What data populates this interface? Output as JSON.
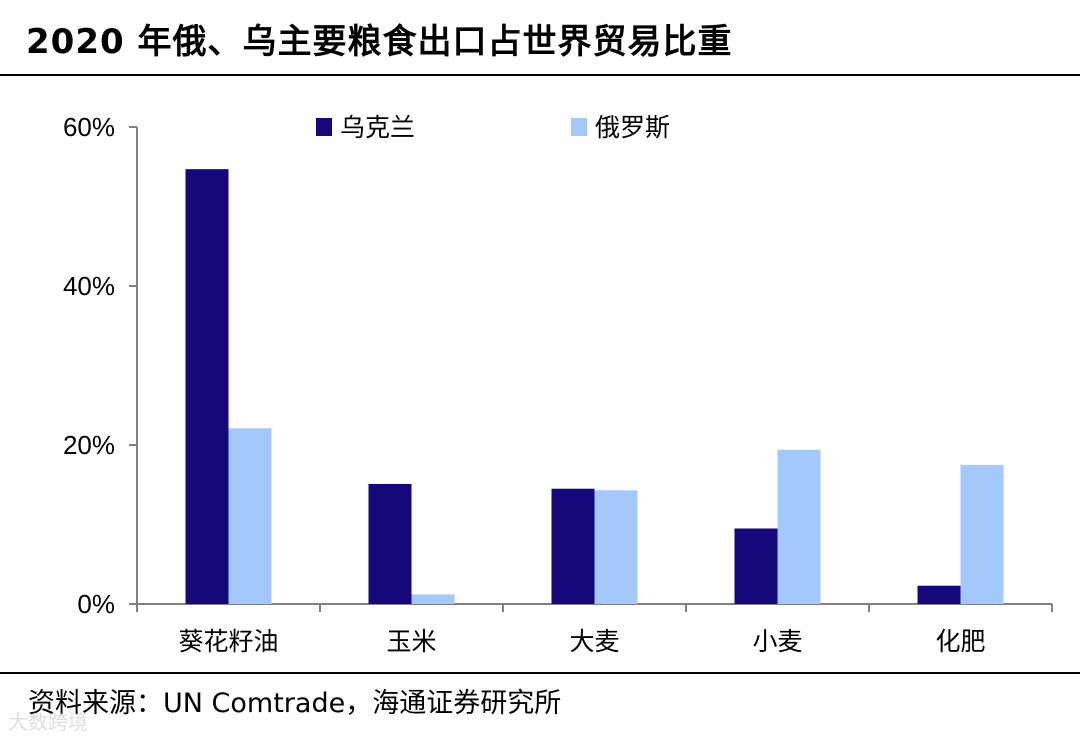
{
  "title": "2020 年俄、乌主要粮食出口占世界贸易比重",
  "source": "资料来源：UN Comtrade，海通证券研究所",
  "watermark": "大数跨境",
  "chart_data": {
    "type": "bar",
    "title": "2020 年俄、乌主要粮食出口占世界贸易比重",
    "categories": [
      "葵花籽油",
      "玉米",
      "大麦",
      "小麦",
      "化肥"
    ],
    "series": [
      {
        "name": "乌克兰",
        "color": "#16087a",
        "values": [
          54.7,
          15.1,
          14.5,
          9.5,
          2.3
        ]
      },
      {
        "name": "俄罗斯",
        "color": "#a5c8fb",
        "values": [
          22.1,
          1.2,
          14.3,
          19.4,
          17.5
        ]
      }
    ],
    "ylim": [
      0,
      60
    ],
    "yticks": [
      "0%",
      "20%",
      "40%",
      "60%"
    ],
    "ytick_values": [
      0,
      20,
      40,
      60
    ],
    "xlabel": "",
    "ylabel": "",
    "grid": false,
    "legend": "top"
  }
}
